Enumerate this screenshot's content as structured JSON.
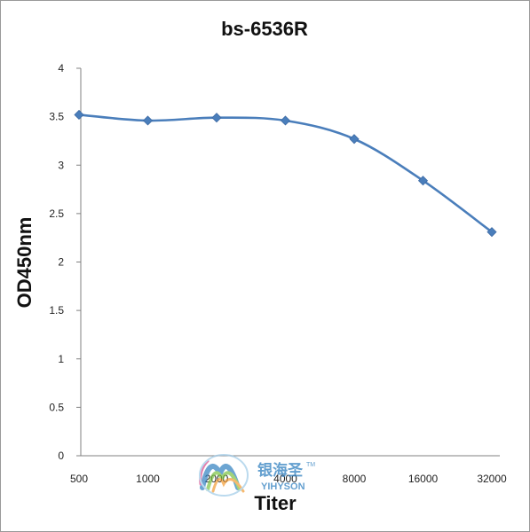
{
  "chart_data": {
    "type": "line",
    "title": "bs-6536R",
    "xlabel": "Titer",
    "ylabel": "OD450nm",
    "categories": [
      "500",
      "1000",
      "2000",
      "4000",
      "8000",
      "16000",
      "32000"
    ],
    "series": [
      {
        "values": [
          3.52,
          3.46,
          3.49,
          3.46,
          3.27,
          2.84,
          2.31
        ],
        "color": "#4a7ebb",
        "smooth": true,
        "marker": "diamond"
      }
    ],
    "ylim": [
      0,
      4
    ],
    "yticks": [
      "0",
      "0.5",
      "1",
      "1.5",
      "2",
      "2.5",
      "3",
      "3.5",
      "4"
    ],
    "grid": false,
    "legend": "none"
  },
  "watermark": {
    "cn": "银海圣",
    "en": "YIHYSON",
    "tm": "TM",
    "colors": [
      "#2f7fbf",
      "#7cc242",
      "#f39c33",
      "#d94a8c"
    ]
  }
}
